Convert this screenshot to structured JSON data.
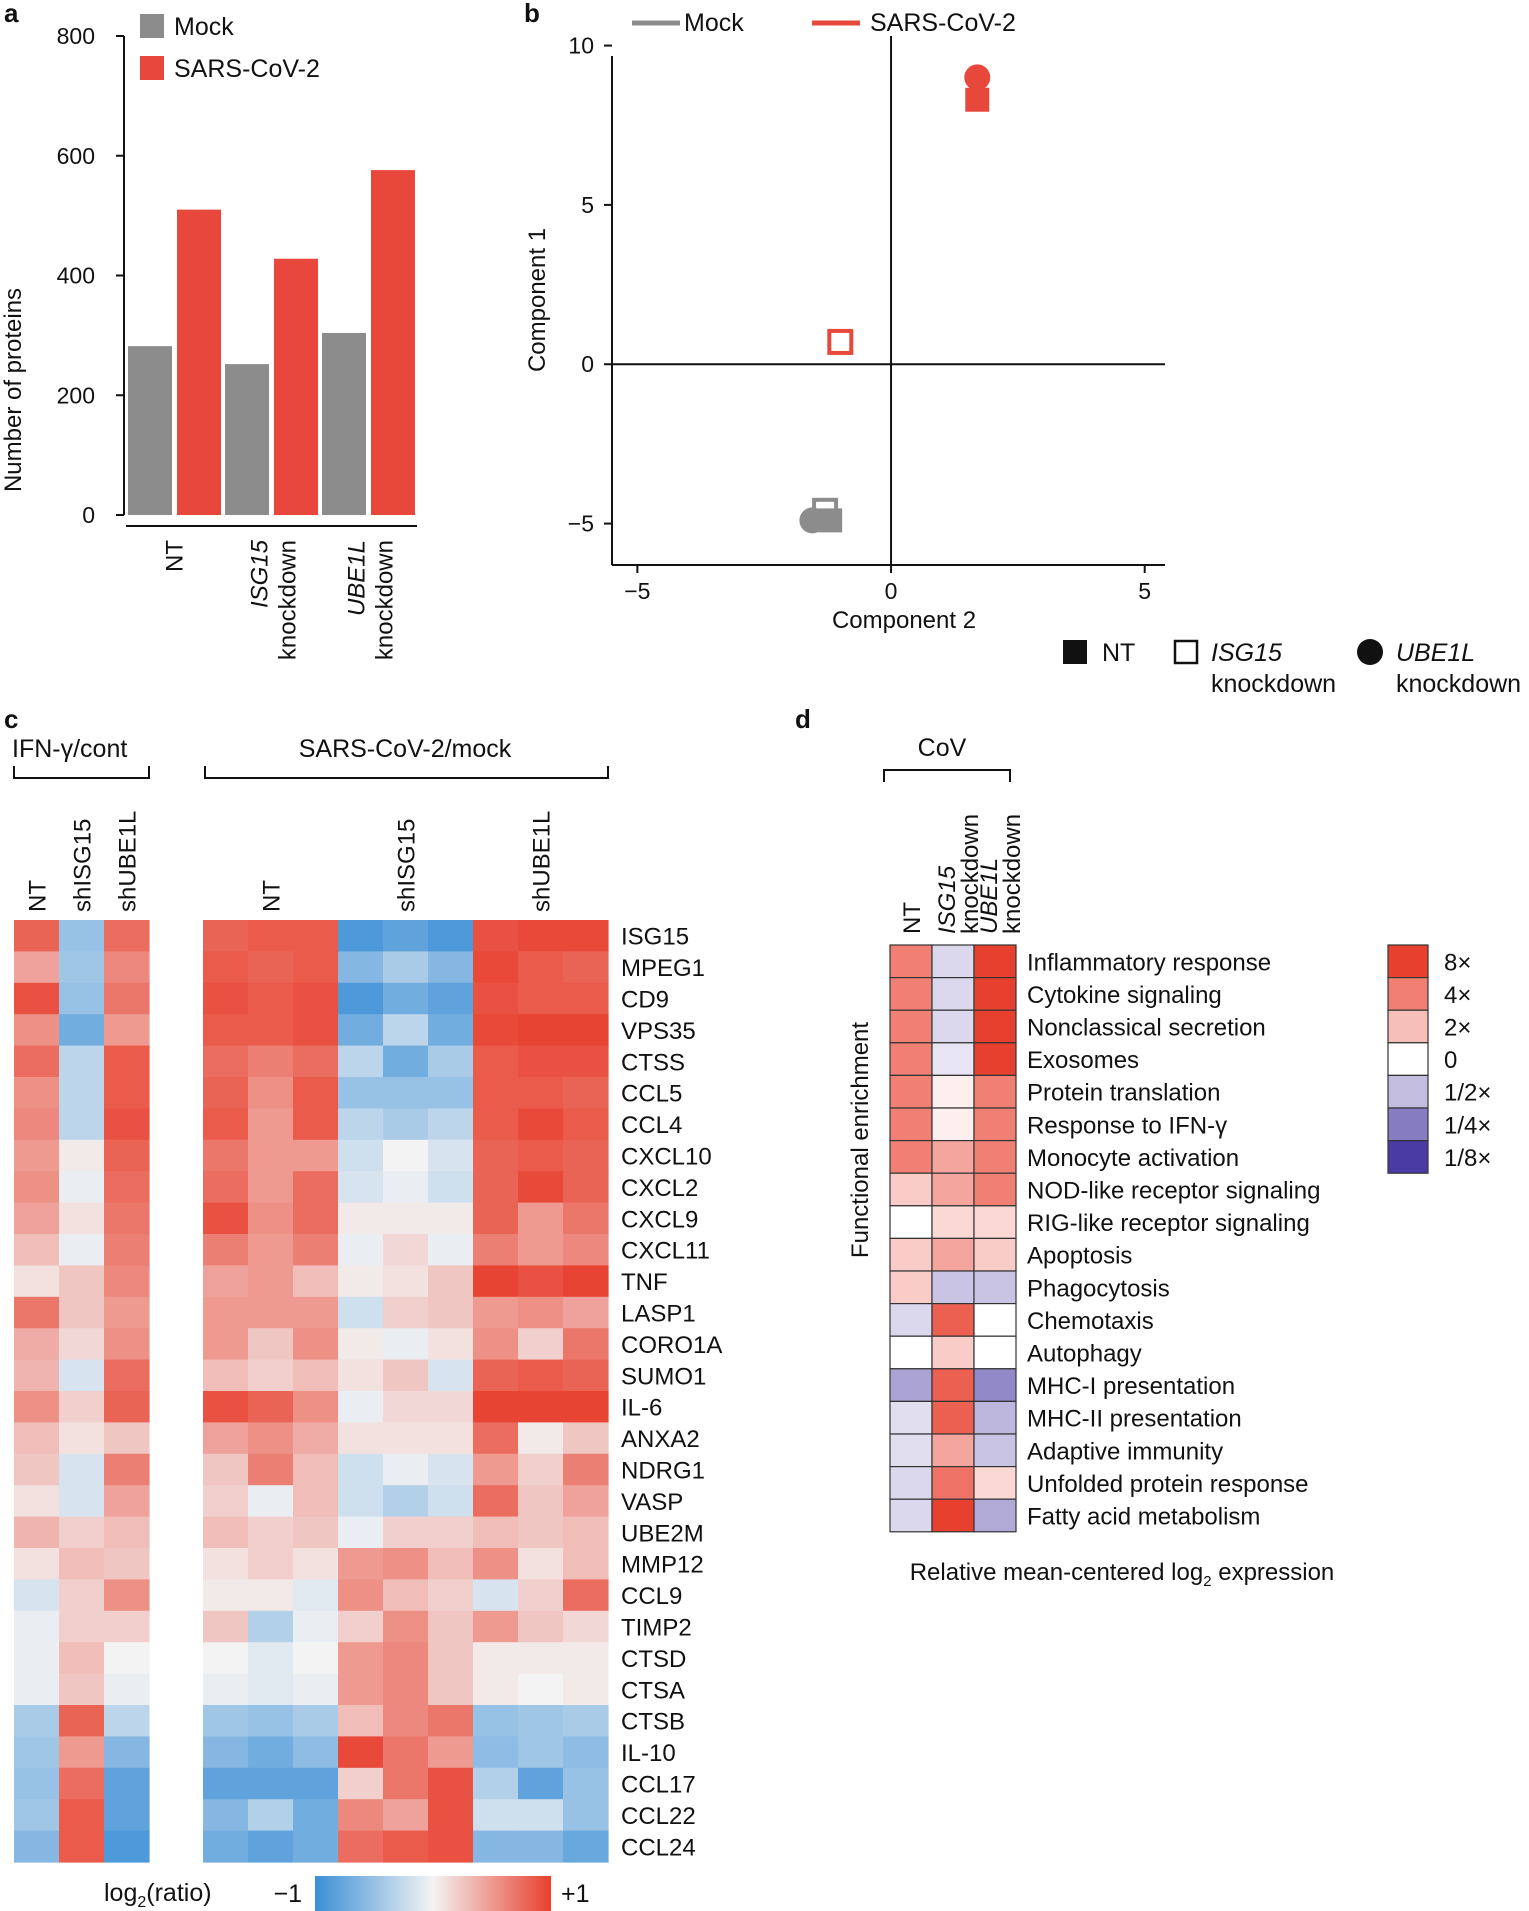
{
  "panel_labels": {
    "a": "a",
    "b": "b",
    "c": "c",
    "d": "d"
  },
  "colors": {
    "mock": "#8c8c8c",
    "sars": "#e8473b",
    "hm_neg": "#3b8fd6",
    "hm_mid": "#f3f3f3",
    "hm_pos": "#e8402f",
    "enr_low": "#4a3aa3",
    "enr_mid": "#ffffff",
    "enr_high": "#e8402f"
  },
  "chart_data": [
    {
      "id": "a",
      "type": "bar",
      "ylabel": "Number of proteins",
      "ylim": [
        0,
        800
      ],
      "yticks": [
        0,
        200,
        400,
        600,
        800
      ],
      "legend": {
        "mock": "Mock",
        "sars": "SARS-CoV-2"
      },
      "groups": [
        {
          "line1": "NT",
          "line2": "",
          "italic": false
        },
        {
          "line1": "ISG15",
          "line2": "knockdown",
          "italic": true
        },
        {
          "line1": "UBE1L",
          "line2": "knockdown",
          "italic": true
        }
      ],
      "series": [
        {
          "name": "Mock",
          "values": [
            282,
            252,
            304
          ]
        },
        {
          "name": "SARS-CoV-2",
          "values": [
            510,
            428,
            576
          ]
        }
      ]
    },
    {
      "id": "b",
      "type": "scatter",
      "xlabel": "Component 2",
      "ylabel": "Component 1",
      "xlim": [
        -5.5,
        5.4
      ],
      "ylim": [
        -6.3,
        10.3
      ],
      "xticks": [
        -5,
        0,
        5
      ],
      "xtick_labels": [
        "−5",
        "0",
        "5"
      ],
      "yticks": [
        -5,
        0,
        5,
        10
      ],
      "ytick_labels": [
        "−5",
        "0",
        "5",
        "10"
      ],
      "legend": {
        "mock": "Mock",
        "sars": "SARS-CoV-2"
      },
      "shape_legend": {
        "nt": "NT",
        "isg_line1": "ISG15",
        "isg_line2": "knockdown",
        "ube_line1": "UBE1L",
        "ube_line2": "knockdown"
      },
      "points": [
        {
          "condition": "SARS-CoV-2",
          "knockdown": "UBE1L",
          "shape": "circle",
          "x": 1.7,
          "y": 9.0
        },
        {
          "condition": "SARS-CoV-2",
          "knockdown": "NT",
          "shape": "square",
          "x": 1.7,
          "y": 8.3
        },
        {
          "condition": "SARS-CoV-2",
          "knockdown": "ISG15",
          "shape": "open-square",
          "x": -1.0,
          "y": 0.7
        },
        {
          "condition": "Mock",
          "knockdown": "ISG15",
          "shape": "open-square",
          "x": -1.3,
          "y": -4.6
        },
        {
          "condition": "Mock",
          "knockdown": "UBE1L",
          "shape": "circle",
          "x": -1.55,
          "y": -4.9
        },
        {
          "condition": "Mock",
          "knockdown": "NT",
          "shape": "square",
          "x": -1.2,
          "y": -4.9
        }
      ]
    },
    {
      "id": "c",
      "type": "heatmap",
      "group_left": "IFN-γ/cont",
      "group_right": "SARS-CoV-2/mock",
      "left_columns": [
        "NT",
        "shISG15",
        "shUBE1L"
      ],
      "right_columns": [
        "NT",
        "shISG15",
        "shUBE1L"
      ],
      "colorbar_label": "log2(ratio)",
      "colorbar_min": "−1",
      "colorbar_max": "+1",
      "rows": [
        "ISG15",
        "MPEG1",
        "CD9",
        "VPS35",
        "CTSS",
        "CCL5",
        "CCL4",
        "CXCL10",
        "CXCL2",
        "CXCL9",
        "CXCL11",
        "TNF",
        "LASP1",
        "CORO1A",
        "SUMO1",
        "IL-6",
        "ANXA2",
        "NDRG1",
        "VASP",
        "UBE2M",
        "MMP12",
        "CCL9",
        "TIMP2",
        "CTSD",
        "CTSA",
        "CTSB",
        "IL-10",
        "CCL17",
        "CCL22",
        "CCL24"
      ],
      "left_values": [
        [
          0.8,
          -0.5,
          0.75
        ],
        [
          0.45,
          -0.45,
          0.6
        ],
        [
          0.9,
          -0.5,
          0.7
        ],
        [
          0.55,
          -0.7,
          0.5
        ],
        [
          0.75,
          -0.3,
          0.85
        ],
        [
          0.55,
          -0.3,
          0.85
        ],
        [
          0.6,
          -0.3,
          0.9
        ],
        [
          0.5,
          0.05,
          0.8
        ],
        [
          0.55,
          -0.05,
          0.75
        ],
        [
          0.45,
          0.1,
          0.7
        ],
        [
          0.3,
          -0.05,
          0.65
        ],
        [
          0.1,
          0.25,
          0.6
        ],
        [
          0.7,
          0.25,
          0.5
        ],
        [
          0.4,
          0.15,
          0.55
        ],
        [
          0.35,
          -0.15,
          0.75
        ],
        [
          0.55,
          0.2,
          0.8
        ],
        [
          0.3,
          0.1,
          0.25
        ],
        [
          0.25,
          -0.15,
          0.65
        ],
        [
          0.1,
          -0.15,
          0.45
        ],
        [
          0.35,
          0.2,
          0.3
        ],
        [
          0.1,
          0.3,
          0.25
        ],
        [
          -0.15,
          0.2,
          0.55
        ],
        [
          -0.05,
          0.2,
          0.2
        ],
        [
          -0.05,
          0.3,
          0.0
        ],
        [
          -0.05,
          0.25,
          -0.05
        ],
        [
          -0.4,
          0.8,
          -0.3
        ],
        [
          -0.45,
          0.5,
          -0.6
        ],
        [
          -0.5,
          0.75,
          -0.8
        ],
        [
          -0.45,
          0.85,
          -0.8
        ],
        [
          -0.6,
          0.85,
          -0.9
        ]
      ],
      "right_values": [
        [
          0.8,
          0.85,
          0.85,
          -0.9,
          -0.8,
          -0.9,
          0.9,
          0.95,
          0.95
        ],
        [
          0.85,
          0.8,
          0.85,
          -0.6,
          -0.4,
          -0.6,
          0.95,
          0.85,
          0.8
        ],
        [
          0.9,
          0.85,
          0.9,
          -0.9,
          -0.7,
          -0.8,
          0.9,
          0.85,
          0.85
        ],
        [
          0.85,
          0.85,
          0.9,
          -0.7,
          -0.3,
          -0.7,
          0.95,
          0.98,
          0.98
        ],
        [
          0.75,
          0.65,
          0.75,
          -0.3,
          -0.7,
          -0.4,
          0.85,
          0.9,
          0.9
        ],
        [
          0.8,
          0.55,
          0.85,
          -0.5,
          -0.5,
          -0.5,
          0.85,
          0.85,
          0.8
        ],
        [
          0.85,
          0.5,
          0.85,
          -0.3,
          -0.4,
          -0.3,
          0.85,
          0.95,
          0.85
        ],
        [
          0.7,
          0.5,
          0.5,
          -0.2,
          0.0,
          -0.15,
          0.8,
          0.85,
          0.8
        ],
        [
          0.75,
          0.5,
          0.75,
          -0.15,
          -0.05,
          -0.2,
          0.8,
          0.95,
          0.8
        ],
        [
          0.9,
          0.55,
          0.75,
          0.05,
          0.05,
          0.05,
          0.8,
          0.5,
          0.7
        ],
        [
          0.65,
          0.5,
          0.65,
          -0.05,
          0.15,
          -0.05,
          0.65,
          0.5,
          0.6
        ],
        [
          0.45,
          0.5,
          0.3,
          0.05,
          0.1,
          0.25,
          0.98,
          0.9,
          0.98
        ],
        [
          0.5,
          0.5,
          0.5,
          -0.2,
          0.2,
          0.25,
          0.5,
          0.55,
          0.45
        ],
        [
          0.5,
          0.25,
          0.55,
          0.05,
          -0.05,
          0.1,
          0.55,
          0.2,
          0.7
        ],
        [
          0.3,
          0.2,
          0.3,
          0.1,
          0.25,
          -0.15,
          0.8,
          0.85,
          0.8
        ],
        [
          0.9,
          0.8,
          0.55,
          -0.05,
          0.15,
          0.15,
          0.98,
          0.98,
          0.98
        ],
        [
          0.45,
          0.55,
          0.4,
          0.1,
          0.1,
          0.1,
          0.75,
          0.05,
          0.25
        ],
        [
          0.25,
          0.65,
          0.3,
          -0.2,
          -0.05,
          -0.15,
          0.5,
          0.2,
          0.65
        ],
        [
          0.2,
          -0.05,
          0.3,
          -0.2,
          -0.35,
          -0.2,
          0.75,
          0.25,
          0.45
        ],
        [
          0.3,
          0.2,
          0.25,
          -0.05,
          0.2,
          0.2,
          0.3,
          0.25,
          0.3
        ],
        [
          0.1,
          0.2,
          0.1,
          0.5,
          0.55,
          0.3,
          0.55,
          0.1,
          0.3
        ],
        [
          0.05,
          0.05,
          -0.1,
          0.55,
          0.3,
          0.2,
          -0.15,
          0.2,
          0.75
        ],
        [
          0.25,
          -0.35,
          -0.05,
          0.2,
          0.55,
          0.25,
          0.5,
          0.25,
          0.15
        ],
        [
          0.0,
          -0.1,
          0.0,
          0.5,
          0.6,
          0.25,
          0.05,
          0.05,
          0.05
        ],
        [
          -0.05,
          -0.1,
          -0.05,
          0.5,
          0.6,
          0.25,
          0.05,
          0.0,
          0.05
        ],
        [
          -0.45,
          -0.5,
          -0.4,
          0.3,
          0.6,
          0.7,
          -0.5,
          -0.45,
          -0.4
        ],
        [
          -0.6,
          -0.7,
          -0.55,
          0.95,
          0.7,
          0.5,
          -0.55,
          -0.45,
          -0.55
        ],
        [
          -0.8,
          -0.8,
          -0.8,
          0.2,
          0.7,
          0.9,
          -0.35,
          -0.8,
          -0.5
        ],
        [
          -0.6,
          -0.35,
          -0.7,
          0.6,
          0.45,
          0.9,
          -0.2,
          -0.2,
          -0.5
        ],
        [
          -0.7,
          -0.8,
          -0.7,
          0.75,
          0.85,
          0.9,
          -0.6,
          -0.6,
          -0.75
        ]
      ]
    },
    {
      "id": "d",
      "type": "heatmap",
      "group_label": "CoV",
      "columns": [
        {
          "line1": "NT",
          "line2": "",
          "italic": false
        },
        {
          "line1": "ISG15",
          "line2": "knockdown",
          "italic": true
        },
        {
          "line1": "UBE1L",
          "line2": "knockdown",
          "italic": true
        }
      ],
      "ylabel": "Functional enrichment",
      "xlabel_prefix": "Relative mean-centered log",
      "xlabel_sub": "2",
      "xlabel_suffix": " expression",
      "legend_labels": [
        "8×",
        "4×",
        "2×",
        "0",
        "1/2×",
        "1/4×",
        "1/8×"
      ],
      "legend_values": [
        3,
        2,
        1,
        0,
        -1,
        -2,
        -3
      ],
      "rows": [
        "Inflammatory response",
        "Cytokine signaling",
        "Nonclassical secretion",
        "Exosomes",
        "Protein translation",
        "Response to IFN-γ",
        "Monocyte activation",
        "NOD-like receptor signaling",
        "RIG-like receptor signaling",
        "Apoptosis",
        "Phagocytosis",
        "Chemotaxis",
        "Autophagy",
        "MHC-I presentation",
        "MHC-II presentation",
        "Adaptive immunity",
        "Unfolded protein response",
        "Fatty acid metabolism"
      ],
      "values": [
        [
          2.0,
          -0.6,
          3.0
        ],
        [
          2.0,
          -0.6,
          3.0
        ],
        [
          2.0,
          -0.6,
          3.0
        ],
        [
          2.0,
          -0.4,
          3.0
        ],
        [
          2.0,
          0.25,
          2.0
        ],
        [
          2.0,
          0.25,
          2.0
        ],
        [
          2.0,
          1.4,
          2.0
        ],
        [
          0.8,
          1.4,
          2.0
        ],
        [
          0.0,
          0.6,
          0.6
        ],
        [
          0.8,
          1.4,
          0.8
        ],
        [
          0.8,
          -0.9,
          -0.9
        ],
        [
          -0.6,
          2.5,
          0.0
        ],
        [
          0.0,
          0.8,
          0.0
        ],
        [
          -1.4,
          2.5,
          -1.8
        ],
        [
          -0.5,
          2.5,
          -1.1
        ],
        [
          -0.5,
          1.4,
          -0.9
        ],
        [
          -0.6,
          2.2,
          0.6
        ],
        [
          -0.6,
          3.0,
          -1.3
        ]
      ]
    }
  ]
}
